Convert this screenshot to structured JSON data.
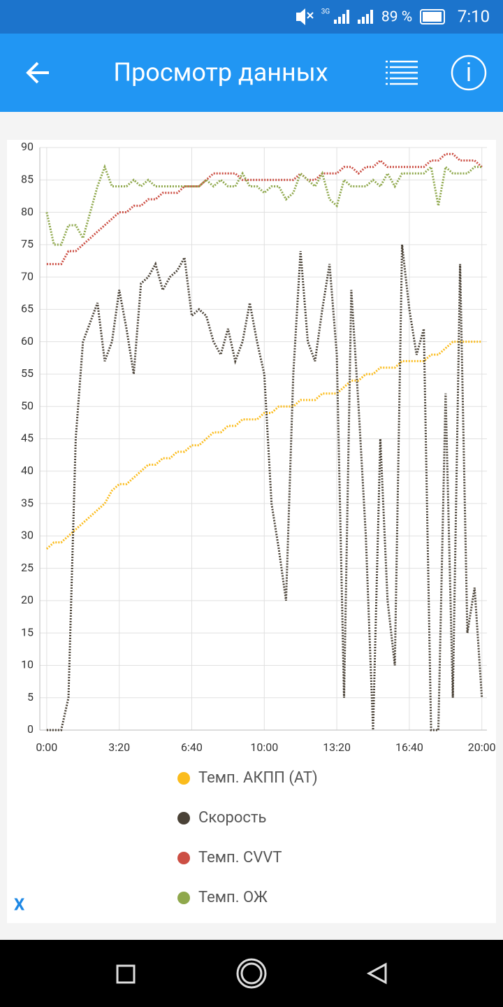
{
  "status_bar": {
    "network": "3G",
    "battery": "89 %",
    "time": "7:10"
  },
  "app_bar": {
    "title": "Просмотр данных"
  },
  "close_button": "X",
  "chart_data": {
    "type": "line",
    "x": [
      0,
      20,
      40,
      60,
      80,
      100,
      120,
      140,
      160,
      180,
      200,
      220,
      240,
      260,
      280,
      300,
      320,
      340,
      360,
      380,
      400,
      420,
      440,
      460,
      480,
      500,
      520,
      540,
      560,
      580,
      600,
      620,
      640,
      660,
      680,
      700,
      720,
      740,
      760,
      780,
      800,
      820,
      840,
      860,
      880,
      900,
      920,
      940,
      960,
      980,
      1000,
      1020,
      1040,
      1060,
      1080,
      1100,
      1120,
      1140,
      1160,
      1180,
      1200
    ],
    "series": [
      {
        "name": "Темп. АКПП (AT)",
        "color": "#fbbc1c",
        "values": [
          28,
          29,
          29,
          30,
          31,
          32,
          33,
          34,
          35,
          37,
          38,
          38,
          39,
          40,
          41,
          41,
          42,
          42,
          43,
          43,
          44,
          44,
          45,
          46,
          46,
          47,
          47,
          48,
          48,
          48,
          49,
          49,
          50,
          50,
          50,
          51,
          51,
          51,
          52,
          52,
          52,
          53,
          54,
          54,
          55,
          55,
          56,
          56,
          56,
          57,
          57,
          57,
          57,
          58,
          58,
          59,
          60,
          60,
          60,
          60,
          60
        ]
      },
      {
        "name": "Скорость",
        "color": "#4a4237",
        "values": [
          0,
          0,
          0,
          5,
          45,
          60,
          63,
          66,
          57,
          60,
          68,
          62,
          55,
          69,
          70,
          72,
          68,
          70,
          71,
          73,
          64,
          65,
          64,
          60,
          58,
          62,
          57,
          60,
          66,
          60,
          55,
          35,
          28,
          20,
          55,
          74,
          60,
          57,
          65,
          72,
          58,
          5,
          68,
          50,
          30,
          0,
          45,
          20,
          10,
          75,
          65,
          58,
          62,
          0,
          0,
          52,
          5,
          72,
          15,
          22,
          5
        ]
      },
      {
        "name": "Темп. CVVT",
        "color": "#cc4f44",
        "values": [
          72,
          72,
          72,
          74,
          74,
          75,
          76,
          77,
          78,
          79,
          80,
          80,
          81,
          81,
          82,
          82,
          83,
          83,
          83,
          84,
          84,
          84,
          85,
          86,
          86,
          86,
          86,
          85,
          85,
          85,
          85,
          85,
          85,
          85,
          85,
          86,
          85,
          85,
          86,
          86,
          86,
          87,
          87,
          86,
          87,
          87,
          88,
          87,
          87,
          87,
          87,
          87,
          87,
          88,
          88,
          89,
          89,
          88,
          88,
          88,
          87
        ]
      },
      {
        "name": "Темп. ОЖ",
        "color": "#8fa84c",
        "values": [
          80,
          75,
          75,
          78,
          78,
          76,
          80,
          84,
          87,
          84,
          84,
          84,
          85,
          84,
          85,
          84,
          84,
          84,
          84,
          84,
          84,
          84,
          85,
          84,
          85,
          84,
          84,
          86,
          84,
          84,
          83,
          84,
          84,
          82,
          83,
          86,
          85,
          84,
          86,
          82,
          81,
          85,
          84,
          84,
          84,
          85,
          84,
          86,
          84,
          86,
          86,
          86,
          86,
          87,
          81,
          87,
          86,
          86,
          86,
          87,
          87
        ]
      }
    ],
    "xlim": [
      -19,
      1214
    ],
    "ylim": [
      0,
      90
    ],
    "xticks": [
      {
        "value": 0,
        "label": "0:00"
      },
      {
        "value": 200,
        "label": "3:20"
      },
      {
        "value": 400,
        "label": "6:40"
      },
      {
        "value": 600,
        "label": "10:00"
      },
      {
        "value": 800,
        "label": "13:20"
      },
      {
        "value": 1000,
        "label": "16:40"
      },
      {
        "value": 1200,
        "label": "20:00"
      }
    ],
    "yticks": [
      0,
      5,
      10,
      15,
      20,
      25,
      30,
      35,
      40,
      45,
      50,
      55,
      60,
      65,
      70,
      75,
      80,
      85,
      90
    ],
    "grid": true
  }
}
